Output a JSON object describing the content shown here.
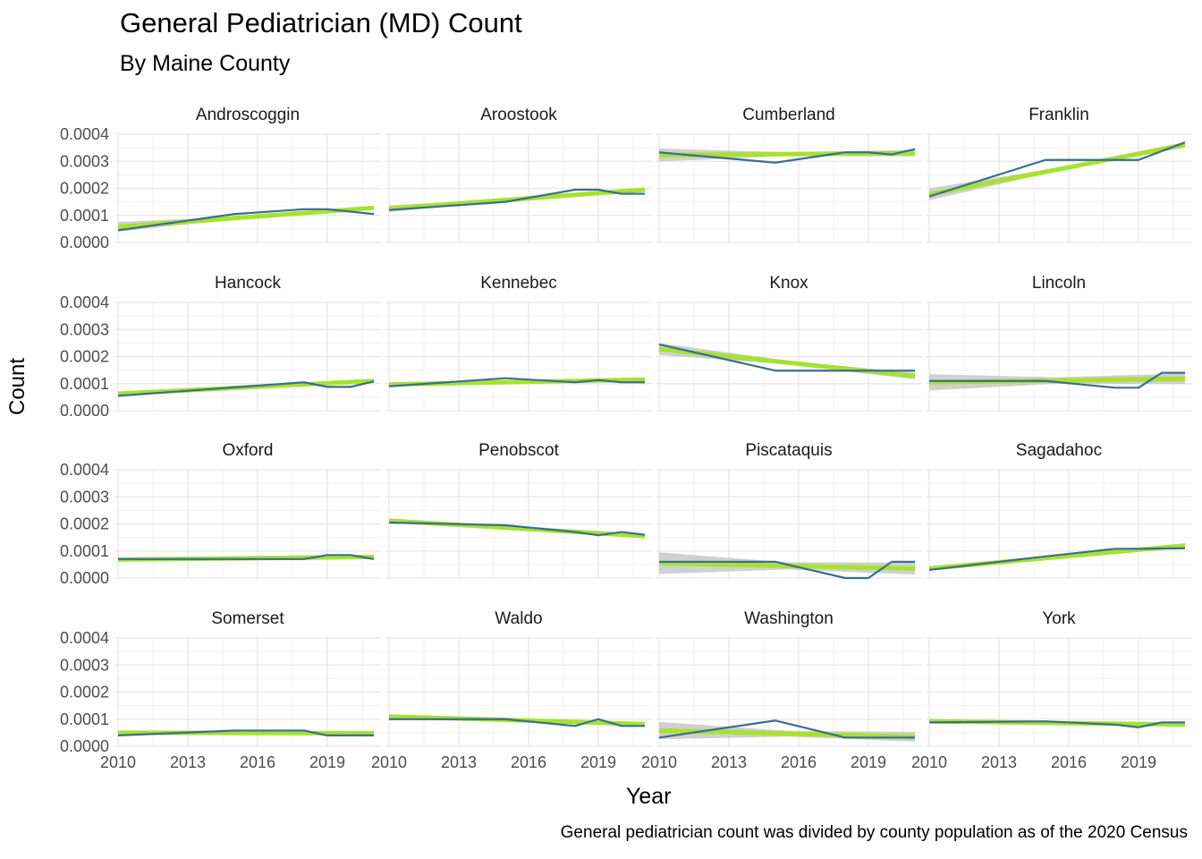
{
  "title": "General Pediatrician (MD) Count",
  "subtitle": "By Maine County",
  "caption": "General pediatrician count was divided by county population as of the 2020 Census",
  "colors": {
    "data_line": "#3b6e8f",
    "trend_line": "#a6e22e",
    "ribbon": "#c8c8c8",
    "grid_major": "#e6e6e6",
    "grid_minor": "#f2f2f2"
  },
  "chart_data": {
    "type": "line",
    "facets": "small-multiples 4x4",
    "xlabel": "Year",
    "ylabel": "Count",
    "xlim": [
      2010,
      2021
    ],
    "ylim": [
      0,
      0.0004
    ],
    "x_ticks": [
      "2010",
      "2013",
      "2016",
      "2019"
    ],
    "y_ticks": [
      "0.0000",
      "0.0001",
      "0.0002",
      "0.0003",
      "0.0004"
    ],
    "grid": true,
    "panels": [
      {
        "name": "Androscoggin",
        "x": [
          2010,
          2015,
          2018,
          2019,
          2021
        ],
        "y": [
          4.5e-05,
          0.000105,
          0.000123,
          0.000123,
          0.000105
        ],
        "trend": [
          5.8e-05,
          0.000128
        ],
        "band": [
          1.8e-05,
          6e-06
        ]
      },
      {
        "name": "Aroostook",
        "x": [
          2010,
          2015,
          2018,
          2019,
          2020,
          2021
        ],
        "y": [
          0.00012,
          0.00015,
          0.000195,
          0.000195,
          0.00018,
          0.00018
        ],
        "trend": [
          0.000125,
          0.000195
        ],
        "band": [
          1.2e-05,
          6e-06
        ]
      },
      {
        "name": "Cumberland",
        "x": [
          2010,
          2015,
          2018,
          2019,
          2020,
          2021
        ],
        "y": [
          0.000333,
          0.000295,
          0.000333,
          0.000333,
          0.000325,
          0.000345
        ],
        "trend": [
          0.000323,
          0.00033
        ],
        "band": [
          2.4e-05,
          1.2e-05
        ]
      },
      {
        "name": "Franklin",
        "x": [
          2010,
          2015,
          2016,
          2019,
          2021
        ],
        "y": [
          0.00017,
          0.000305,
          0.000305,
          0.000305,
          0.00037
        ],
        "trend": [
          0.000178,
          0.000361
        ],
        "band": [
          2.2e-05,
          1e-05
        ]
      },
      {
        "name": "Hancock",
        "x": [
          2010,
          2018,
          2019,
          2020,
          2021
        ],
        "y": [
          5.5e-05,
          0.000105,
          8.8e-05,
          8.8e-05,
          0.000108
        ],
        "trend": [
          6.3e-05,
          0.00011
        ],
        "band": [
          6e-06,
          6e-06
        ]
      },
      {
        "name": "Kennebec",
        "x": [
          2010,
          2015,
          2018,
          2019,
          2020,
          2021
        ],
        "y": [
          9e-05,
          0.00012,
          0.000105,
          0.000113,
          0.000105,
          0.000105
        ],
        "trend": [
          9.7e-05,
          0.000115
        ],
        "band": [
          6e-06,
          6e-06
        ]
      },
      {
        "name": "Knox",
        "x": [
          2010,
          2015,
          2018,
          2019,
          2021
        ],
        "y": [
          0.000245,
          0.000148,
          0.000148,
          0.000148,
          0.000148
        ],
        "trend": [
          0.000228,
          0.000128
        ],
        "band": [
          2.2e-05,
          1.2e-05
        ]
      },
      {
        "name": "Lincoln",
        "x": [
          2010,
          2015,
          2018,
          2019,
          2020,
          2021
        ],
        "y": [
          0.00011,
          0.00011,
          8.5e-05,
          8.5e-05,
          0.00014,
          0.00014
        ],
        "trend": [
          0.000105,
          0.000118
        ],
        "band": [
          3e-05,
          2e-05
        ]
      },
      {
        "name": "Oxford",
        "x": [
          2010,
          2018,
          2019,
          2020,
          2021
        ],
        "y": [
          7e-05,
          7e-05,
          8.5e-05,
          8.5e-05,
          7e-05
        ],
        "trend": [
          6.8e-05,
          7.8e-05
        ],
        "band": [
          6e-06,
          6e-06
        ]
      },
      {
        "name": "Penobscot",
        "x": [
          2010,
          2015,
          2018,
          2019,
          2020,
          2021
        ],
        "y": [
          0.000205,
          0.000195,
          0.00017,
          0.000158,
          0.00017,
          0.00016
        ],
        "trend": [
          0.000212,
          0.000155
        ],
        "band": [
          6e-06,
          6e-06
        ]
      },
      {
        "name": "Piscataquis",
        "x": [
          2010,
          2015,
          2018,
          2019,
          2020,
          2021
        ],
        "y": [
          6e-05,
          6e-05,
          0.0,
          0.0,
          6e-05,
          6e-05
        ],
        "trend": [
          5.5e-05,
          3.5e-05
        ],
        "band": [
          4e-05,
          2.2e-05
        ]
      },
      {
        "name": "Sagadahoc",
        "x": [
          2010,
          2015,
          2018,
          2019,
          2021
        ],
        "y": [
          3e-05,
          8e-05,
          0.000108,
          0.000108,
          0.00011
        ],
        "trend": [
          3.5e-05,
          0.00012
        ],
        "band": [
          8e-06,
          8e-06
        ]
      },
      {
        "name": "Somerset",
        "x": [
          2010,
          2015,
          2018,
          2019,
          2020,
          2021
        ],
        "y": [
          4e-05,
          5.8e-05,
          5.8e-05,
          4e-05,
          4e-05,
          4e-05
        ],
        "trend": [
          5e-05,
          4.8e-05
        ],
        "band": [
          8e-06,
          6e-06
        ]
      },
      {
        "name": "Waldo",
        "x": [
          2010,
          2015,
          2018,
          2019,
          2020,
          2021
        ],
        "y": [
          0.0001,
          0.0001,
          7.5e-05,
          0.0001,
          7.5e-05,
          7.5e-05
        ],
        "trend": [
          0.00011,
          8.2e-05
        ],
        "band": [
          8e-06,
          6e-06
        ]
      },
      {
        "name": "Washington",
        "x": [
          2010,
          2015,
          2018,
          2019,
          2020,
          2021
        ],
        "y": [
          3.2e-05,
          9.5e-05,
          3.2e-05,
          3.2e-05,
          3.2e-05,
          3.2e-05
        ],
        "trend": [
          5.8e-05,
          3.5e-05
        ],
        "band": [
          3.2e-05,
          1.8e-05
        ]
      },
      {
        "name": "York",
        "x": [
          2010,
          2015,
          2018,
          2019,
          2020,
          2021
        ],
        "y": [
          8.8e-05,
          9.2e-05,
          8e-05,
          7e-05,
          8.8e-05,
          8.8e-05
        ],
        "trend": [
          9.2e-05,
          8e-05
        ],
        "band": [
          6e-06,
          6e-06
        ]
      }
    ]
  }
}
